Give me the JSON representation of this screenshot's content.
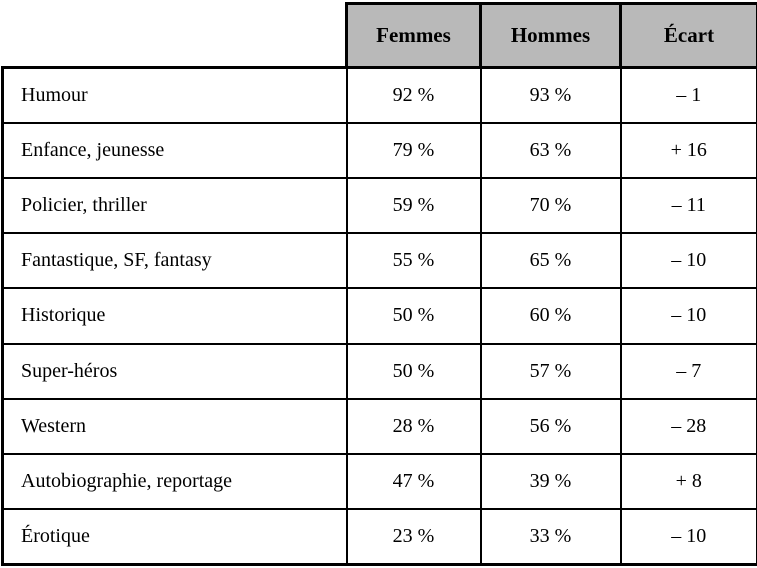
{
  "colors": {
    "header_background": "#b9b9b9",
    "border": "#000000",
    "background": "#ffffff"
  },
  "chart_data": {
    "type": "table",
    "title": "",
    "columns": [
      "",
      "Femmes",
      "Hommes",
      "Écart"
    ],
    "rows": [
      [
        "Humour",
        "92 %",
        "93 %",
        "– 1"
      ],
      [
        "Enfance, jeunesse",
        "79 %",
        "63 %",
        "+ 16"
      ],
      [
        "Policier, thriller",
        "59 %",
        "70 %",
        "– 11"
      ],
      [
        "Fantastique, SF, fantasy",
        "55 %",
        "65 %",
        "– 10"
      ],
      [
        "Historique",
        "50 %",
        "60 %",
        "– 10"
      ],
      [
        "Super-héros",
        "50 %",
        "57 %",
        "– 7"
      ],
      [
        "Western",
        "28 %",
        "56 %",
        "– 28"
      ],
      [
        "Autobiographie, reportage",
        "47 %",
        "39 %",
        "+ 8"
      ],
      [
        "Érotique",
        "23 %",
        "33 %",
        "– 10"
      ]
    ],
    "categories": [
      "Humour",
      "Enfance, jeunesse",
      "Policier, thriller",
      "Fantastique, SF, fantasy",
      "Historique",
      "Super-héros",
      "Western",
      "Autobiographie, reportage",
      "Érotique"
    ],
    "series": [
      {
        "name": "Femmes",
        "unit": "%",
        "values": [
          92,
          79,
          59,
          55,
          50,
          50,
          28,
          47,
          23
        ]
      },
      {
        "name": "Hommes",
        "unit": "%",
        "values": [
          93,
          63,
          70,
          65,
          60,
          57,
          56,
          39,
          33
        ]
      },
      {
        "name": "Écart",
        "unit": "points",
        "values": [
          -1,
          16,
          -11,
          -10,
          -10,
          -7,
          -28,
          8,
          -10
        ]
      }
    ],
    "layout": {
      "grid": true,
      "header_row_shaded": true,
      "corner_cell_empty": true
    }
  }
}
